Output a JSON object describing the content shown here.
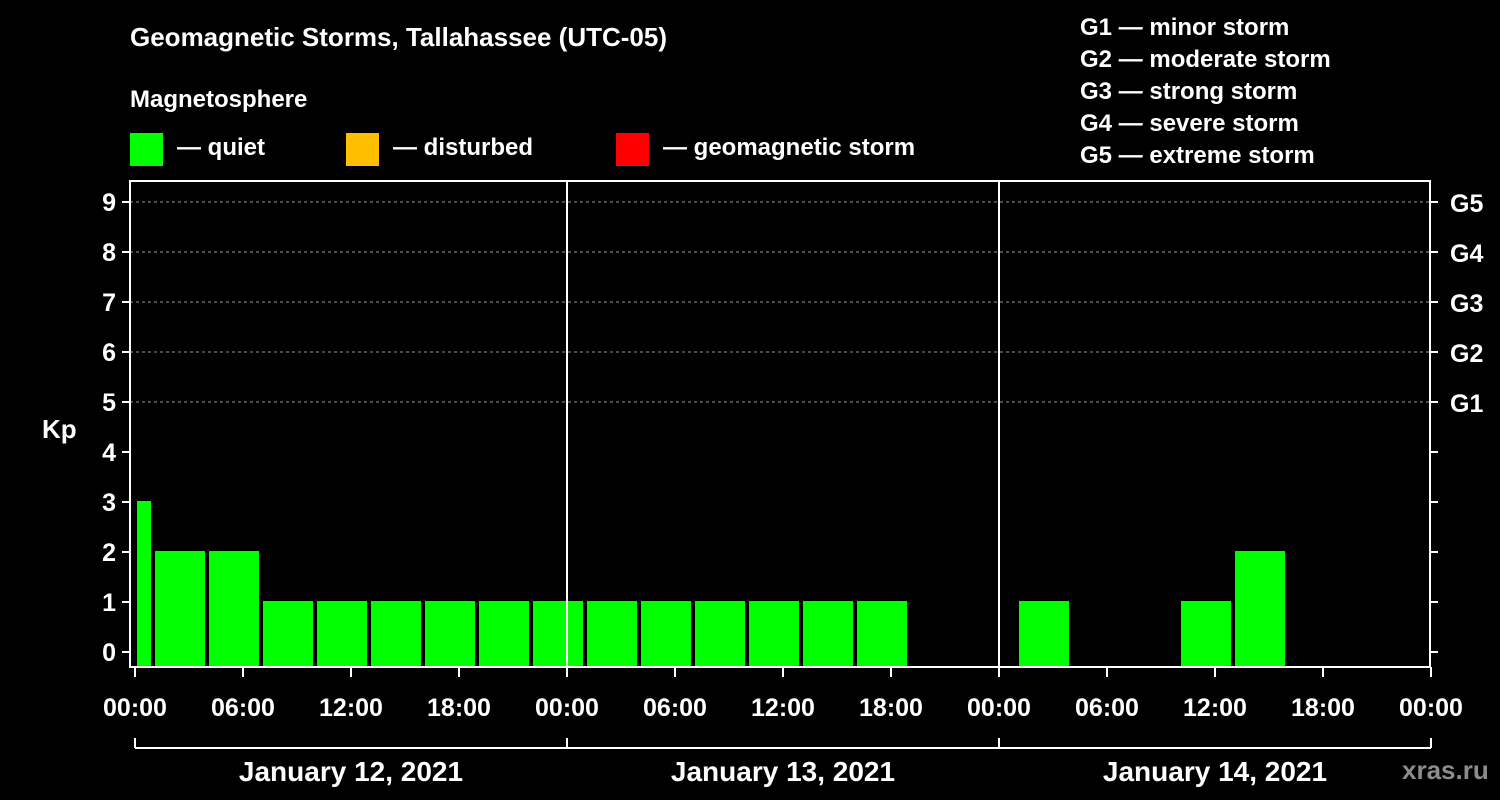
{
  "chart_data": {
    "type": "bar",
    "title": "Geomagnetic Storms, Tallahassee (UTC-05)",
    "ylabel": "Kp",
    "ylim": [
      0,
      9.5
    ],
    "y_ticks": [
      "0",
      "1",
      "2",
      "3",
      "4",
      "5",
      "6",
      "7",
      "8",
      "9"
    ],
    "g_scale_ticks": [
      {
        "kp": 5,
        "label": "G1"
      },
      {
        "kp": 6,
        "label": "G2"
      },
      {
        "kp": 7,
        "label": "G3"
      },
      {
        "kp": 8,
        "label": "G4"
      },
      {
        "kp": 9,
        "label": "G5"
      }
    ],
    "gridlines_kp": [
      5,
      6,
      7,
      8,
      9
    ],
    "x_hours_range": [
      0,
      72
    ],
    "x_tick_labels": [
      "00:00",
      "06:00",
      "12:00",
      "18:00",
      "00:00",
      "06:00",
      "12:00",
      "18:00",
      "00:00",
      "06:00",
      "12:00",
      "18:00",
      "00:00"
    ],
    "day_labels": [
      "January 12, 2021",
      "January 13, 2021",
      "January 14, 2021"
    ],
    "bars": [
      {
        "start": 0,
        "end": 1,
        "kp": 3
      },
      {
        "start": 1,
        "end": 4,
        "kp": 2
      },
      {
        "start": 4,
        "end": 7,
        "kp": 2
      },
      {
        "start": 7,
        "end": 10,
        "kp": 1
      },
      {
        "start": 10,
        "end": 13,
        "kp": 1
      },
      {
        "start": 13,
        "end": 16,
        "kp": 1
      },
      {
        "start": 16,
        "end": 19,
        "kp": 1
      },
      {
        "start": 19,
        "end": 22,
        "kp": 1
      },
      {
        "start": 22,
        "end": 25,
        "kp": 1
      },
      {
        "start": 25,
        "end": 28,
        "kp": 1
      },
      {
        "start": 28,
        "end": 31,
        "kp": 1
      },
      {
        "start": 31,
        "end": 34,
        "kp": 1
      },
      {
        "start": 34,
        "end": 37,
        "kp": 1
      },
      {
        "start": 37,
        "end": 40,
        "kp": 1
      },
      {
        "start": 40,
        "end": 43,
        "kp": 1
      },
      {
        "start": 43,
        "end": 46,
        "kp": 0
      },
      {
        "start": 46,
        "end": 49,
        "kp": 0
      },
      {
        "start": 49,
        "end": 52,
        "kp": 1
      },
      {
        "start": 52,
        "end": 55,
        "kp": 0
      },
      {
        "start": 55,
        "end": 58,
        "kp": 0
      },
      {
        "start": 58,
        "end": 61,
        "kp": 1
      },
      {
        "start": 61,
        "end": 64,
        "kp": 2
      }
    ],
    "colors": {
      "quiet": "#00ff00",
      "disturbed": "#ffbf00",
      "storm": "#ff0000"
    }
  },
  "legend": {
    "heading": "Magnetosphere",
    "items": [
      {
        "label": "— quiet",
        "color": "#00ff00"
      },
      {
        "label": "— disturbed",
        "color": "#ffbf00"
      },
      {
        "label": "— geomagnetic storm",
        "color": "#ff0000"
      }
    ]
  },
  "g_levels": [
    "G1 — minor storm",
    "G2 — moderate storm",
    "G3 — strong storm",
    "G4 — severe storm",
    "G5 — extreme storm"
  ],
  "watermark": "xras.ru"
}
